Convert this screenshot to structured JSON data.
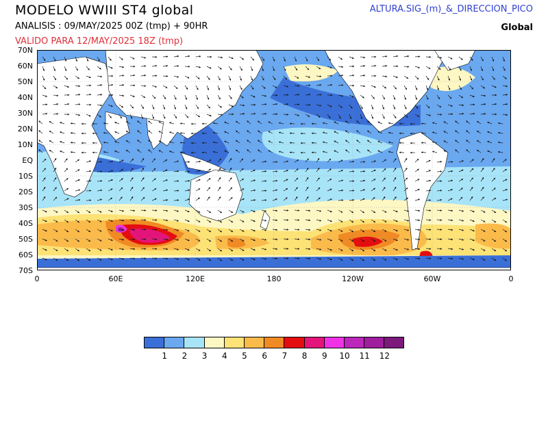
{
  "header": {
    "title": "MODELO  WWIII  ST4  global",
    "analysis": "ANALISIS : 09/MAY/2025 00Z  (tmp) + 90HR",
    "valid": "VALIDO PARA  12/MAY/2025 18Z  (tmp)",
    "product": "ALTURA.SIG_(m)_&_DIRECCION_PICO",
    "region": "Global"
  },
  "axes": {
    "lat_labels": [
      "70N",
      "60N",
      "50N",
      "40N",
      "30N",
      "20N",
      "10N",
      "EQ",
      "10S",
      "20S",
      "30S",
      "40S",
      "50S",
      "60S",
      "70S"
    ],
    "lon_labels": [
      "0",
      "60E",
      "120E",
      "180",
      "120W",
      "60W",
      "0"
    ]
  },
  "colorbar": {
    "colors": [
      "#3a6fd8",
      "#6aa8f0",
      "#a8e4f8",
      "#fdf7c4",
      "#fde276",
      "#fbbb4a",
      "#f08a24",
      "#e40d10",
      "#e4157a",
      "#f032e6",
      "#bb26bb",
      "#9e1e9e",
      "#7c1a7c"
    ],
    "labels": [
      "1",
      "2",
      "3",
      "4",
      "5",
      "6",
      "7",
      "8",
      "9",
      "10",
      "11",
      "12"
    ]
  },
  "colors": {
    "land": "#ffffff",
    "ocean_base": "#6aa8f0",
    "valid_text": "#e0303a",
    "product_text": "#3040d0"
  }
}
